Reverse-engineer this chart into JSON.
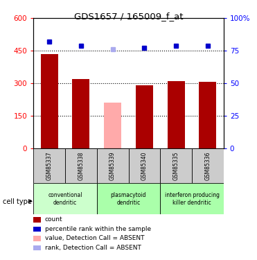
{
  "title": "GDS1657 / 165009_f_at",
  "samples": [
    "GSM85337",
    "GSM85338",
    "GSM85339",
    "GSM85340",
    "GSM85335",
    "GSM85336"
  ],
  "bar_values": [
    435,
    320,
    210,
    290,
    310,
    305
  ],
  "bar_colors": [
    "#aa0000",
    "#aa0000",
    "#ffaaaa",
    "#aa0000",
    "#aa0000",
    "#aa0000"
  ],
  "rank_values": [
    82,
    79,
    76,
    77,
    79,
    79
  ],
  "rank_colors": [
    "#0000cc",
    "#0000cc",
    "#aaaaee",
    "#0000cc",
    "#0000cc",
    "#0000cc"
  ],
  "ylim_left": [
    0,
    600
  ],
  "ylim_right": [
    0,
    100
  ],
  "yticks_left": [
    0,
    150,
    300,
    450,
    600
  ],
  "yticks_right": [
    0,
    25,
    50,
    75,
    100
  ],
  "ytick_labels_right": [
    "0",
    "25",
    "50",
    "75",
    "100%"
  ],
  "grid_lines": [
    150,
    300,
    450
  ],
  "group_defs": [
    {
      "start": 0,
      "end": 1,
      "label": "conventional\ndendritic",
      "color": "#ccffcc"
    },
    {
      "start": 2,
      "end": 3,
      "label": "plasmacytoid\ndendritic",
      "color": "#aaffaa"
    },
    {
      "start": 4,
      "end": 5,
      "label": "interferon producing\nkiller dendritic",
      "color": "#aaffaa"
    }
  ],
  "cell_type_label": "cell type",
  "legend_items": [
    {
      "color": "#aa0000",
      "label": "count"
    },
    {
      "color": "#0000cc",
      "label": "percentile rank within the sample"
    },
    {
      "color": "#ffaaaa",
      "label": "value, Detection Call = ABSENT"
    },
    {
      "color": "#aaaaee",
      "label": "rank, Detection Call = ABSENT"
    }
  ],
  "bar_width": 0.55,
  "sample_cell_color": "#cccccc",
  "fig_width": 3.71,
  "fig_height": 3.75,
  "dpi": 100
}
